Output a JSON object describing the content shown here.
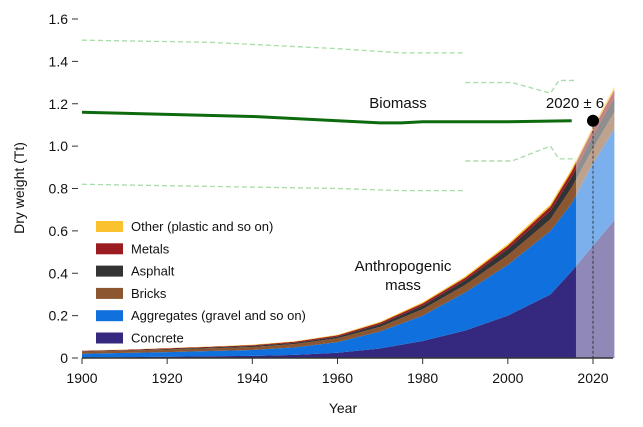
{
  "chart_data": {
    "type": "area",
    "xlabel": "Year",
    "ylabel": "Dry weight (Tt)",
    "xlim": [
      1900,
      2025
    ],
    "ylim": [
      0,
      1.6
    ],
    "xticks": [
      1900,
      1920,
      1940,
      1960,
      1980,
      2000,
      2020
    ],
    "yticks": [
      "0",
      "0.2",
      "0.4",
      "0.6",
      "0.8",
      "1.0",
      "1.2",
      "1.4",
      "1.6"
    ],
    "projection_start": 2016,
    "x": [
      1900,
      1910,
      1920,
      1930,
      1940,
      1950,
      1960,
      1970,
      1980,
      1990,
      2000,
      2005,
      2010,
      2015,
      2020,
      2025
    ],
    "series": [
      {
        "name": "Concrete",
        "color": "#35297f",
        "values": [
          0.002,
          0.004,
          0.006,
          0.008,
          0.01,
          0.015,
          0.025,
          0.045,
          0.08,
          0.13,
          0.2,
          0.25,
          0.3,
          0.41,
          0.53,
          0.65
        ]
      },
      {
        "name": "Aggregates (gravel and so on)",
        "color": "#1070dd",
        "values": [
          0.018,
          0.02,
          0.022,
          0.025,
          0.028,
          0.035,
          0.05,
          0.08,
          0.12,
          0.18,
          0.24,
          0.27,
          0.3,
          0.32,
          0.39,
          0.43
        ]
      },
      {
        "name": "Bricks",
        "color": "#8b5630",
        "values": [
          0.01,
          0.011,
          0.012,
          0.013,
          0.014,
          0.016,
          0.018,
          0.022,
          0.03,
          0.035,
          0.045,
          0.05,
          0.055,
          0.075,
          0.07,
          0.08
        ]
      },
      {
        "name": "Asphalt",
        "color": "#333333",
        "values": [
          0.002,
          0.002,
          0.003,
          0.004,
          0.005,
          0.006,
          0.008,
          0.012,
          0.018,
          0.022,
          0.03,
          0.035,
          0.04,
          0.05,
          0.06,
          0.07
        ]
      },
      {
        "name": "Metals",
        "color": "#9b1c20",
        "values": [
          0.002,
          0.002,
          0.003,
          0.003,
          0.004,
          0.005,
          0.006,
          0.008,
          0.01,
          0.012,
          0.015,
          0.017,
          0.02,
          0.025,
          0.03,
          0.035
        ]
      },
      {
        "name": "Other (plastic and so on)",
        "color": "#f9c22e",
        "values": [
          0.001,
          0.001,
          0.001,
          0.001,
          0.002,
          0.002,
          0.003,
          0.004,
          0.005,
          0.006,
          0.008,
          0.009,
          0.01,
          0.012,
          0.013,
          0.015
        ]
      }
    ],
    "biomass": {
      "label": "Biomass",
      "color": "#0d6b0d",
      "x": [
        1900,
        1920,
        1940,
        1960,
        1970,
        1975,
        1980,
        2000,
        2015
      ],
      "values": [
        1.16,
        1.15,
        1.14,
        1.12,
        1.11,
        1.11,
        1.115,
        1.115,
        1.12
      ],
      "upper_a": {
        "x": [
          1900,
          1930,
          1960,
          1975,
          1990
        ],
        "values": [
          1.5,
          1.49,
          1.46,
          1.44,
          1.44
        ]
      },
      "upper_b": {
        "x": [
          1990,
          2001,
          2010,
          2012,
          2016
        ],
        "values": [
          1.3,
          1.3,
          1.25,
          1.31,
          1.31
        ]
      },
      "lower_a": {
        "x": [
          1900,
          1930,
          1960,
          1975,
          1990
        ],
        "values": [
          0.82,
          0.81,
          0.8,
          0.79,
          0.79
        ]
      },
      "lower_b": {
        "x": [
          1990,
          2001,
          2010,
          2012,
          2016
        ],
        "values": [
          0.93,
          0.93,
          1.0,
          0.94,
          0.94
        ]
      }
    },
    "crossover": {
      "label": "2020 ± 6",
      "x": 2020,
      "y": 1.12
    },
    "annotation": "Anthropogenic mass"
  }
}
